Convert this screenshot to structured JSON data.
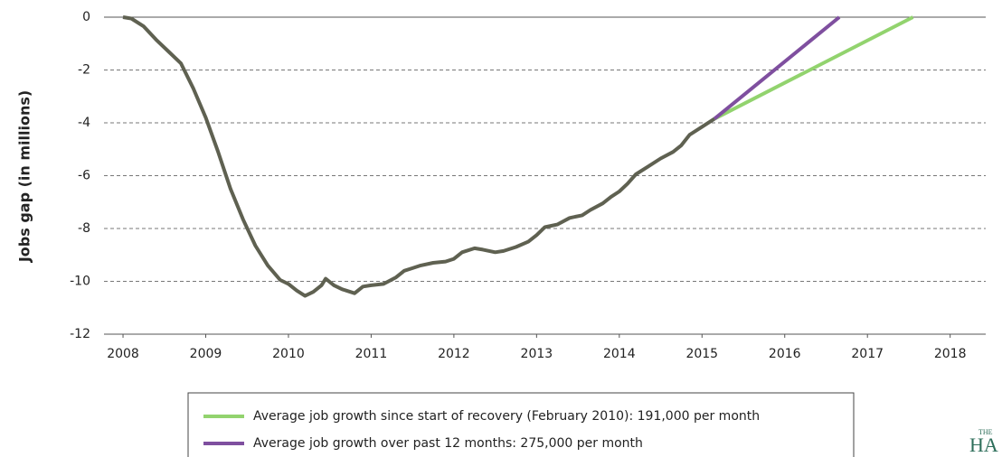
{
  "chart_data": {
    "type": "line",
    "y_label": "Jobs gap (in millions)",
    "xlim": [
      2007.77,
      2018.43
    ],
    "xticks": [
      2008,
      2009,
      2010,
      2011,
      2012,
      2013,
      2014,
      2015,
      2016,
      2017,
      2018
    ],
    "ylim": [
      -12,
      0
    ],
    "yticks": [
      0,
      -2,
      -4,
      -6,
      -8,
      -10,
      -12
    ],
    "grid": true,
    "series": [
      {
        "color": "#5f6151",
        "x": [
          2008.0,
          2008.1,
          2008.25,
          2008.4,
          2008.55,
          2008.7,
          2008.85,
          2009.0,
          2009.15,
          2009.3,
          2009.45,
          2009.6,
          2009.75,
          2009.9,
          2010.0,
          2010.1,
          2010.2,
          2010.3,
          2010.4,
          2010.45,
          2010.55,
          2010.65,
          2010.8,
          2010.9,
          2011.0,
          2011.15,
          2011.3,
          2011.4,
          2011.5,
          2011.6,
          2011.75,
          2011.9,
          2012.0,
          2012.1,
          2012.25,
          2012.35,
          2012.5,
          2012.6,
          2012.75,
          2012.9,
          2013.0,
          2013.1,
          2013.25,
          2013.4,
          2013.55,
          2013.65,
          2013.8,
          2013.9,
          2014.0,
          2014.1,
          2014.2,
          2014.35,
          2014.5,
          2014.65,
          2014.75,
          2014.85,
          2015.0,
          2015.15
        ],
        "values": [
          0,
          -0.05,
          -0.35,
          -0.85,
          -1.3,
          -1.75,
          -2.7,
          -3.8,
          -5.1,
          -6.5,
          -7.65,
          -8.65,
          -9.4,
          -9.95,
          -10.1,
          -10.35,
          -10.55,
          -10.4,
          -10.15,
          -9.9,
          -10.15,
          -10.3,
          -10.45,
          -10.2,
          -10.15,
          -10.1,
          -9.85,
          -9.6,
          -9.5,
          -9.4,
          -9.3,
          -9.25,
          -9.15,
          -8.9,
          -8.75,
          -8.8,
          -8.9,
          -8.85,
          -8.7,
          -8.5,
          -8.25,
          -7.95,
          -7.85,
          -7.6,
          -7.5,
          -7.3,
          -7.05,
          -6.8,
          -6.6,
          -6.3,
          -5.95,
          -5.65,
          -5.35,
          -5.1,
          -4.85,
          -4.45,
          -4.15,
          -3.85
        ]
      },
      {
        "name": "Average job growth since start of recovery (February 2010): 191,000 per month",
        "color": "#92d36e",
        "x": [
          2015.15,
          2017.55
        ],
        "values": [
          -3.85,
          0
        ]
      },
      {
        "name": "Average job growth over past 12 months: 275,000 per month",
        "color": "#7f4f9f",
        "x": [
          2015.15,
          2016.66
        ],
        "values": [
          -3.85,
          0
        ]
      }
    ],
    "logo_top": "THE",
    "logo_main": "HA"
  }
}
